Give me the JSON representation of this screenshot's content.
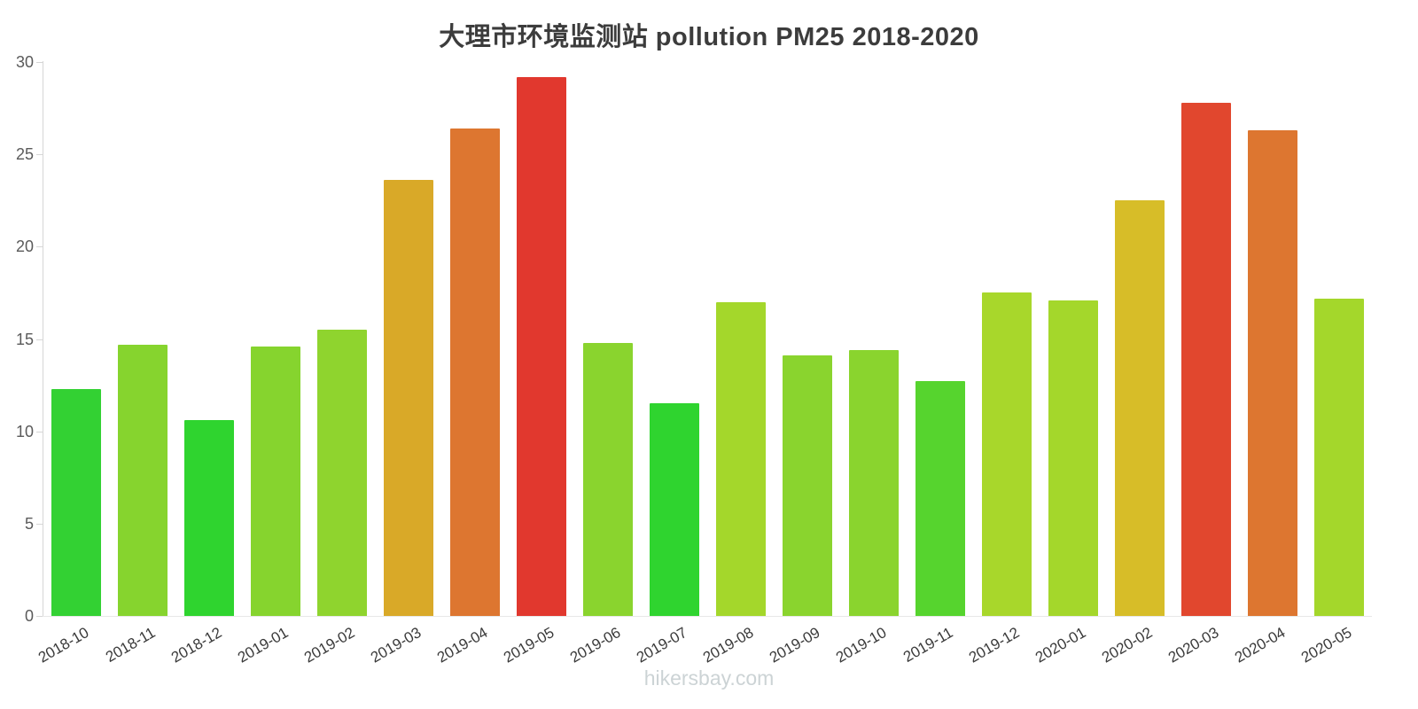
{
  "title": "大理市环境监测站 pollution PM25 2018-2020",
  "watermark": "hikersbay.com",
  "chart_data": {
    "type": "bar",
    "title": "大理市环境监测站 pollution PM25 2018-2020",
    "xlabel": "",
    "ylabel": "",
    "ylim": [
      0,
      30
    ],
    "yticks": [
      0,
      5,
      10,
      15,
      20,
      25,
      30
    ],
    "grid": false,
    "legend": "none",
    "categories": [
      "2018-10",
      "2018-11",
      "2018-12",
      "2019-01",
      "2019-02",
      "2019-03",
      "2019-04",
      "2019-05",
      "2019-06",
      "2019-07",
      "2019-08",
      "2019-09",
      "2019-10",
      "2019-11",
      "2019-12",
      "2020-01",
      "2020-02",
      "2020-03",
      "2020-04",
      "2020-05"
    ],
    "values": [
      12.3,
      14.7,
      10.6,
      14.6,
      15.5,
      23.6,
      26.4,
      29.2,
      14.8,
      11.5,
      17.0,
      14.1,
      14.4,
      12.7,
      17.5,
      17.1,
      22.5,
      27.8,
      26.3,
      17.2
    ],
    "colors": [
      "#33d133",
      "#86d42e",
      "#2fd42f",
      "#86d42e",
      "#8fd42e",
      "#d9a928",
      "#dd7630",
      "#e1382e",
      "#8ad42e",
      "#2fd42f",
      "#a4d72b",
      "#8ad42e",
      "#8ad42e",
      "#56d42e",
      "#a8d72b",
      "#a4d72b",
      "#d7bd28",
      "#e1472e",
      "#dd7630",
      "#a4d72b"
    ]
  }
}
